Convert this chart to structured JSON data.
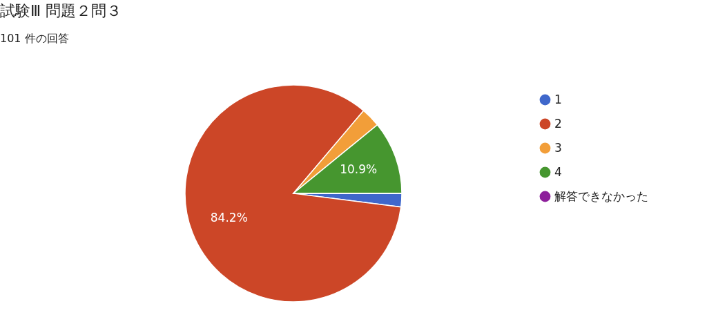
{
  "chart_data": {
    "type": "pie",
    "title": "試験Ⅲ 問題２問３",
    "subtitle": "101 件の回答",
    "categories": [
      "1",
      "2",
      "3",
      "4",
      "解答できなかった"
    ],
    "values": [
      2.0,
      84.2,
      2.9,
      10.9,
      0
    ],
    "colors": [
      "#3f67cb",
      "#cc4627",
      "#f29e39",
      "#46962f",
      "#8d1f9b"
    ],
    "value_labels": [
      null,
      "84.2%",
      null,
      "10.9%",
      null
    ],
    "legend": "right"
  }
}
